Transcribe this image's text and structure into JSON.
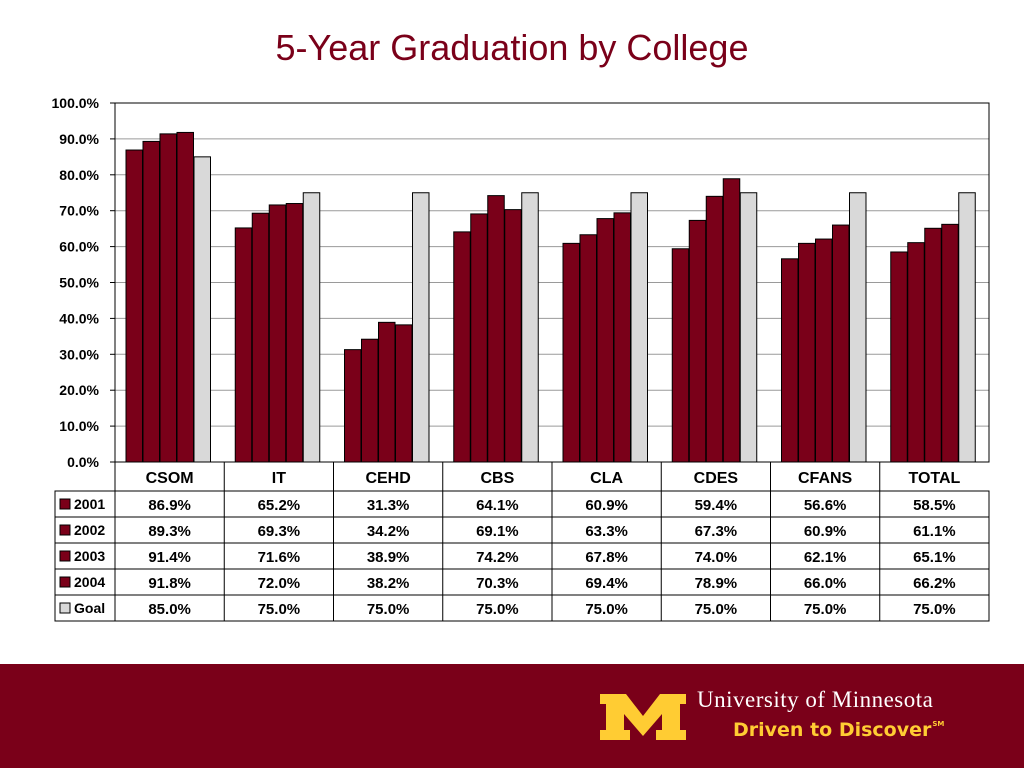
{
  "title": "5-Year Graduation by College",
  "branding": {
    "university": "University of Minnesota",
    "tagline": "Driven to Discover",
    "tagline_mark": "SM",
    "maroon": "#7a0019",
    "gold": "#ffcc33"
  },
  "chart_data": {
    "type": "bar",
    "title": "5-Year Graduation by College",
    "categories": [
      "CSOM",
      "IT",
      "CEHD",
      "CBS",
      "CLA",
      "CDES",
      "CFANS",
      "TOTAL"
    ],
    "series": [
      {
        "name": "2001",
        "color": "#7a0019",
        "values": [
          86.9,
          65.2,
          31.3,
          64.1,
          60.9,
          59.4,
          56.6,
          58.5
        ],
        "labels": [
          "86.9%",
          "65.2%",
          "31.3%",
          "64.1%",
          "60.9%",
          "59.4%",
          "56.6%",
          "58.5%"
        ]
      },
      {
        "name": "2002",
        "color": "#7a0019",
        "values": [
          89.3,
          69.3,
          34.2,
          69.1,
          63.3,
          67.3,
          60.9,
          61.1
        ],
        "labels": [
          "89.3%",
          "69.3%",
          "34.2%",
          "69.1%",
          "63.3%",
          "67.3%",
          "60.9%",
          "61.1%"
        ]
      },
      {
        "name": "2003",
        "color": "#7a0019",
        "values": [
          91.4,
          71.6,
          38.9,
          74.2,
          67.8,
          74.0,
          62.1,
          65.1
        ],
        "labels": [
          "91.4%",
          "71.6%",
          "38.9%",
          "74.2%",
          "67.8%",
          "74.0%",
          "62.1%",
          "65.1%"
        ]
      },
      {
        "name": "2004",
        "color": "#7a0019",
        "values": [
          91.8,
          72.0,
          38.2,
          70.3,
          69.4,
          78.9,
          66.0,
          66.2
        ],
        "labels": [
          "91.8%",
          "72.0%",
          "38.2%",
          "70.3%",
          "69.4%",
          "78.9%",
          "66.0%",
          "66.2%"
        ]
      },
      {
        "name": "Goal",
        "color": "#d9d9d9",
        "values": [
          85.0,
          75.0,
          75.0,
          75.0,
          75.0,
          75.0,
          75.0,
          75.0
        ],
        "labels": [
          "85.0%",
          "75.0%",
          "75.0%",
          "75.0%",
          "75.0%",
          "75.0%",
          "75.0%",
          "75.0%"
        ]
      }
    ],
    "yticks": [
      "0.0%",
      "10.0%",
      "20.0%",
      "30.0%",
      "40.0%",
      "50.0%",
      "60.0%",
      "70.0%",
      "80.0%",
      "90.0%",
      "100.0%"
    ],
    "ylim": [
      0,
      100
    ],
    "grid": true,
    "xlabel": "",
    "ylabel": "",
    "legend": "data-table"
  }
}
